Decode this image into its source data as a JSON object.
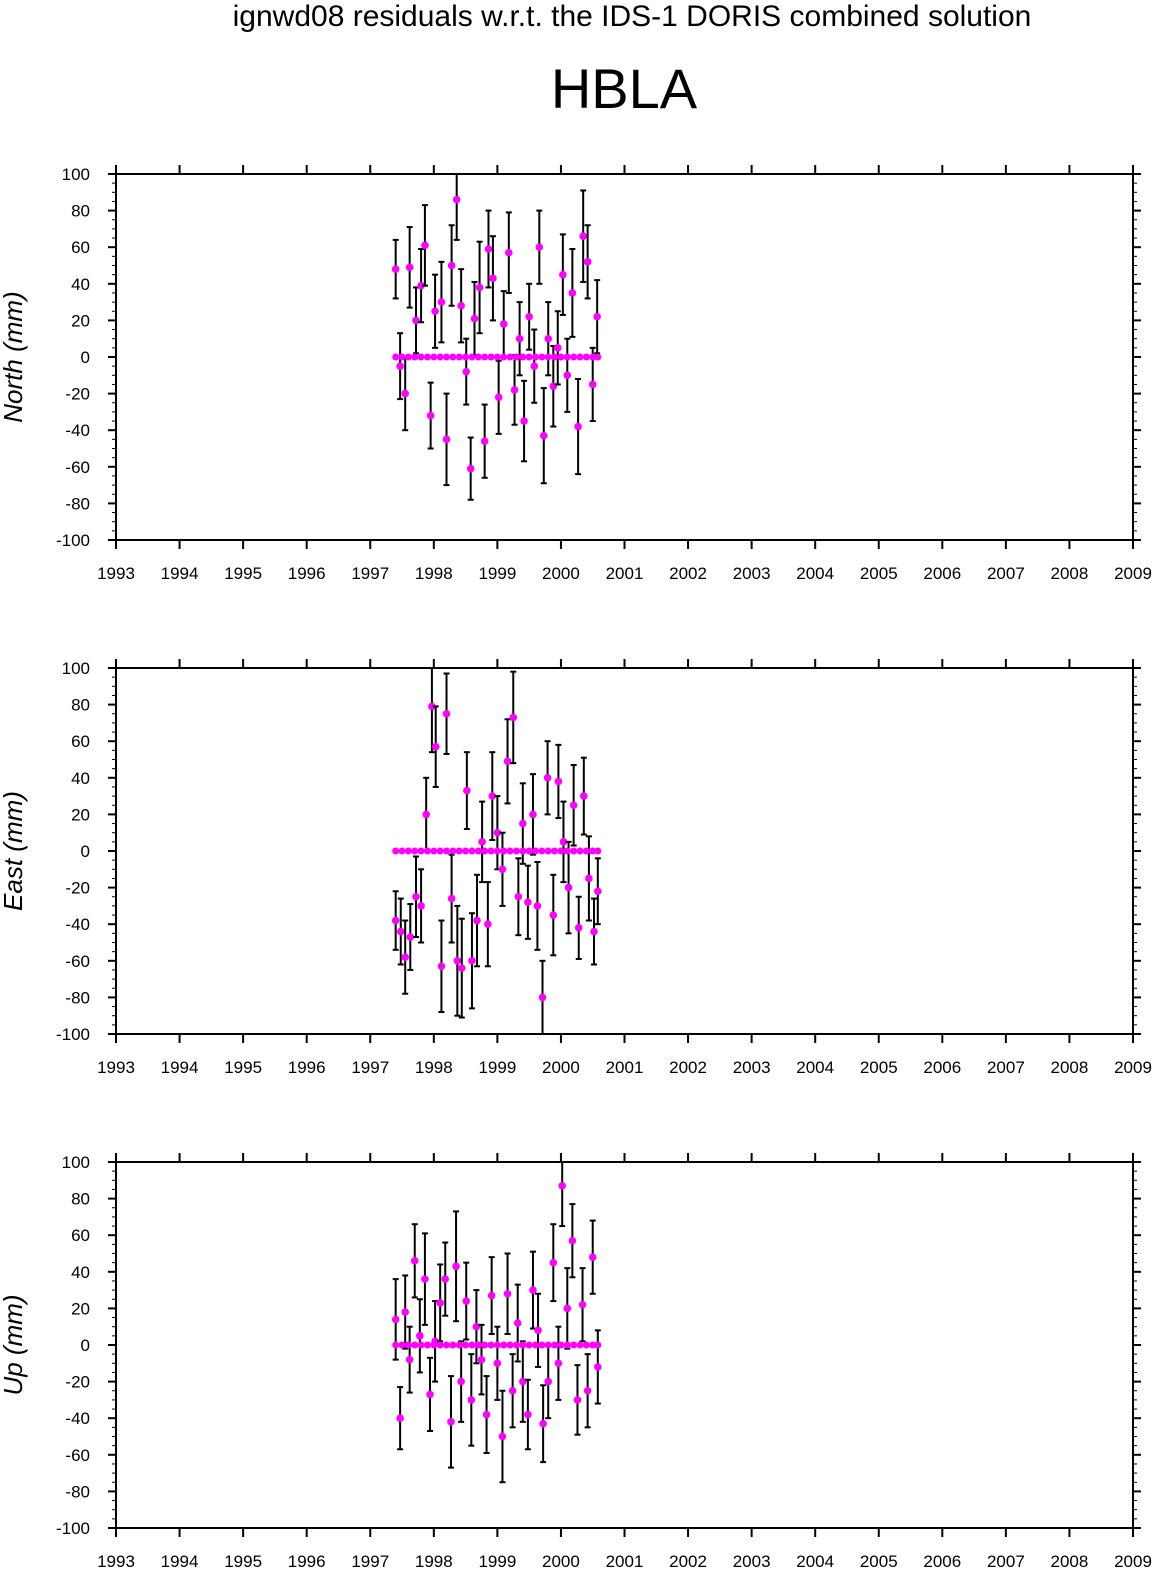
{
  "suptitle": "ignwd08 residuals w.r.t. the IDS-1 DORIS combined solution",
  "title": "HBLA",
  "colors": {
    "point": "#ff00ff",
    "errorbar": "#000000",
    "axis": "#000000"
  },
  "chart_data": [
    {
      "type": "scatter",
      "ylabel": "North (mm)",
      "xlim": [
        1993,
        2009
      ],
      "ylim": [
        -100,
        100
      ],
      "xticks": [
        "1993",
        "1994",
        "1995",
        "1996",
        "1997",
        "1998",
        "1999",
        "2000",
        "2001",
        "2002",
        "2003",
        "2004",
        "2005",
        "2006",
        "2007",
        "2008",
        "2009"
      ],
      "yticks": [
        "100",
        "80",
        "60",
        "40",
        "20",
        "0",
        "-20",
        "-40",
        "-60",
        "-80",
        "-100"
      ],
      "grid": false,
      "series": [
        {
          "x": [
            1997.4,
            1997.47,
            1997.55,
            1997.62,
            1997.72,
            1997.8,
            1997.86,
            1997.95,
            1998.02,
            1998.12,
            1998.2,
            1998.28,
            1998.36,
            1998.43,
            1998.51,
            1998.58,
            1998.64,
            1998.72,
            1998.8,
            1998.86,
            1998.93,
            1999.02,
            1999.1,
            1999.18,
            1999.27,
            1999.35,
            1999.42,
            1999.5,
            1999.58,
            1999.66,
            1999.73,
            1999.8,
            1999.88,
            1999.95,
            2000.03,
            2000.1,
            2000.18,
            2000.27,
            2000.35,
            2000.42,
            2000.5,
            2000.57
          ],
          "y": [
            48,
            -5,
            -20,
            49,
            20,
            39,
            61,
            -32,
            25,
            30,
            -45,
            50,
            86,
            28,
            -8,
            -61,
            21,
            38,
            -46,
            59,
            43,
            -22,
            18,
            57,
            -18,
            10,
            -35,
            22,
            -5,
            60,
            -43,
            10,
            -16,
            5,
            45,
            -10,
            35,
            -38,
            66,
            52,
            -15,
            22
          ],
          "err": [
            16,
            18,
            20,
            22,
            18,
            20,
            22,
            18,
            20,
            22,
            25,
            22,
            22,
            20,
            18,
            17,
            20,
            25,
            20,
            21,
            23,
            20,
            18,
            22,
            19,
            20,
            22,
            18,
            20,
            20,
            26,
            20,
            22,
            20,
            22,
            20,
            24,
            26,
            25,
            20,
            20,
            20
          ]
        },
        {
          "x": [
            1997.4,
            1997.5,
            1997.6,
            1997.7,
            1997.8,
            1997.9,
            1998.0,
            1998.1,
            1998.2,
            1998.3,
            1998.4,
            1998.5,
            1998.6,
            1998.7,
            1998.8,
            1998.9,
            1999.0,
            1999.1,
            1999.2,
            1999.3,
            1999.4,
            1999.5,
            1999.6,
            1999.7,
            1999.8,
            1999.9,
            2000.0,
            2000.1,
            2000.2,
            2000.3,
            2000.4,
            2000.5,
            2000.58
          ],
          "y": [
            0,
            0,
            0,
            0,
            0,
            0,
            0,
            0,
            0,
            0,
            0,
            0,
            0,
            0,
            0,
            0,
            0,
            0,
            0,
            0,
            0,
            0,
            0,
            0,
            0,
            0,
            0,
            0,
            0,
            0,
            0,
            0,
            0
          ],
          "err": [
            0,
            0,
            0,
            0,
            0,
            0,
            0,
            0,
            0,
            0,
            0,
            0,
            0,
            0,
            0,
            0,
            0,
            0,
            0,
            0,
            0,
            0,
            0,
            0,
            0,
            0,
            0,
            0,
            0,
            0,
            0,
            0,
            0
          ]
        }
      ]
    },
    {
      "type": "scatter",
      "ylabel": "East (mm)",
      "xlim": [
        1993,
        2009
      ],
      "ylim": [
        -100,
        100
      ],
      "xticks": [
        "1993",
        "1994",
        "1995",
        "1996",
        "1997",
        "1998",
        "1999",
        "2000",
        "2001",
        "2002",
        "2003",
        "2004",
        "2005",
        "2006",
        "2007",
        "2008",
        "2009"
      ],
      "yticks": [
        "100",
        "80",
        "60",
        "40",
        "20",
        "0",
        "-20",
        "-40",
        "-60",
        "-80",
        "-100"
      ],
      "grid": false,
      "series": [
        {
          "x": [
            1997.4,
            1997.48,
            1997.55,
            1997.63,
            1997.72,
            1997.8,
            1997.88,
            1997.97,
            1998.03,
            1998.12,
            1998.2,
            1998.28,
            1998.37,
            1998.44,
            1998.52,
            1998.6,
            1998.68,
            1998.76,
            1998.85,
            1998.92,
            1999.0,
            1999.08,
            1999.16,
            1999.25,
            1999.33,
            1999.4,
            1999.48,
            1999.56,
            1999.63,
            1999.71,
            1999.79,
            1999.88,
            1999.96,
            2000.04,
            2000.12,
            2000.2,
            2000.28,
            2000.36,
            2000.44,
            2000.52,
            2000.58
          ],
          "y": [
            -38,
            -44,
            -58,
            -47,
            -25,
            -30,
            20,
            79,
            57,
            -63,
            75,
            -26,
            -60,
            -64,
            33,
            -60,
            -38,
            5,
            -40,
            30,
            10,
            -10,
            49,
            73,
            -25,
            15,
            -28,
            20,
            -30,
            -80,
            40,
            -35,
            38,
            5,
            -20,
            25,
            -42,
            30,
            -15,
            -44,
            -22
          ],
          "err": [
            16,
            18,
            20,
            18,
            22,
            20,
            20,
            25,
            22,
            25,
            22,
            24,
            30,
            27,
            21,
            26,
            25,
            22,
            23,
            24,
            20,
            20,
            23,
            25,
            21,
            22,
            20,
            22,
            24,
            20,
            20,
            22,
            20,
            22,
            25,
            22,
            17,
            21,
            23,
            18,
            18
          ]
        },
        {
          "x": [
            1997.4,
            1997.5,
            1997.6,
            1997.7,
            1997.8,
            1997.9,
            1998.0,
            1998.1,
            1998.2,
            1998.3,
            1998.4,
            1998.5,
            1998.6,
            1998.7,
            1998.8,
            1998.9,
            1999.0,
            1999.1,
            1999.2,
            1999.3,
            1999.4,
            1999.5,
            1999.6,
            1999.7,
            1999.8,
            1999.9,
            2000.0,
            2000.1,
            2000.2,
            2000.3,
            2000.4,
            2000.5,
            2000.58
          ],
          "y": [
            0,
            0,
            0,
            0,
            0,
            0,
            0,
            0,
            0,
            0,
            0,
            0,
            0,
            0,
            0,
            0,
            0,
            0,
            0,
            0,
            0,
            0,
            0,
            0,
            0,
            0,
            0,
            0,
            0,
            0,
            0,
            0,
            0
          ],
          "err": [
            0,
            0,
            0,
            0,
            0,
            0,
            0,
            0,
            0,
            0,
            0,
            0,
            0,
            0,
            0,
            0,
            0,
            0,
            0,
            0,
            0,
            0,
            0,
            0,
            0,
            0,
            0,
            0,
            0,
            0,
            0,
            0,
            0
          ]
        }
      ]
    },
    {
      "type": "scatter",
      "ylabel": "Up (mm)",
      "xlim": [
        1993,
        2009
      ],
      "ylim": [
        -100,
        100
      ],
      "xticks": [
        "1993",
        "1994",
        "1995",
        "1996",
        "1997",
        "1998",
        "1999",
        "2000",
        "2001",
        "2002",
        "2003",
        "2004",
        "2005",
        "2006",
        "2007",
        "2008",
        "2009"
      ],
      "yticks": [
        "100",
        "80",
        "60",
        "40",
        "20",
        "0",
        "-20",
        "-40",
        "-60",
        "-80",
        "-100"
      ],
      "grid": false,
      "series": [
        {
          "x": [
            1997.4,
            1997.47,
            1997.55,
            1997.62,
            1997.7,
            1997.78,
            1997.86,
            1997.94,
            1998.02,
            1998.1,
            1998.18,
            1998.27,
            1998.35,
            1998.43,
            1998.51,
            1998.59,
            1998.67,
            1998.75,
            1998.83,
            1998.91,
            1999.0,
            1999.08,
            1999.16,
            1999.24,
            1999.32,
            1999.4,
            1999.48,
            1999.56,
            1999.64,
            1999.72,
            1999.8,
            1999.88,
            1999.96,
            2000.02,
            2000.1,
            2000.18,
            2000.26,
            2000.34,
            2000.42,
            2000.5,
            2000.58
          ],
          "y": [
            14,
            -40,
            18,
            -8,
            46,
            5,
            36,
            -27,
            2,
            23,
            36,
            -42,
            43,
            -20,
            24,
            -30,
            10,
            -8,
            -38,
            27,
            -10,
            -50,
            28,
            -25,
            12,
            -20,
            -38,
            30,
            8,
            -43,
            -20,
            45,
            -10,
            87,
            20,
            57,
            -30,
            22,
            -25,
            48,
            -12
          ],
          "err": [
            22,
            17,
            20,
            18,
            20,
            20,
            25,
            20,
            22,
            21,
            20,
            25,
            30,
            22,
            21,
            25,
            20,
            19,
            21,
            21,
            20,
            25,
            22,
            20,
            21,
            22,
            19,
            21,
            20,
            21,
            20,
            21,
            20,
            22,
            22,
            20,
            19,
            20,
            20,
            20,
            20
          ]
        },
        {
          "x": [
            1997.4,
            1997.5,
            1997.6,
            1997.7,
            1997.8,
            1997.9,
            1998.0,
            1998.1,
            1998.2,
            1998.3,
            1998.4,
            1998.5,
            1998.6,
            1998.7,
            1998.8,
            1998.9,
            1999.0,
            1999.1,
            1999.2,
            1999.3,
            1999.4,
            1999.5,
            1999.6,
            1999.7,
            1999.8,
            1999.9,
            2000.0,
            2000.1,
            2000.2,
            2000.3,
            2000.4,
            2000.5,
            2000.58
          ],
          "y": [
            0,
            0,
            0,
            0,
            0,
            0,
            0,
            0,
            0,
            0,
            0,
            0,
            0,
            0,
            0,
            0,
            0,
            0,
            0,
            0,
            0,
            0,
            0,
            0,
            0,
            0,
            0,
            0,
            0,
            0,
            0,
            0,
            0
          ],
          "err": [
            0,
            0,
            0,
            0,
            0,
            0,
            0,
            0,
            0,
            0,
            0,
            0,
            0,
            0,
            0,
            0,
            0,
            0,
            0,
            0,
            0,
            0,
            0,
            0,
            0,
            0,
            0,
            0,
            0,
            0,
            0,
            0,
            0
          ]
        }
      ]
    }
  ]
}
